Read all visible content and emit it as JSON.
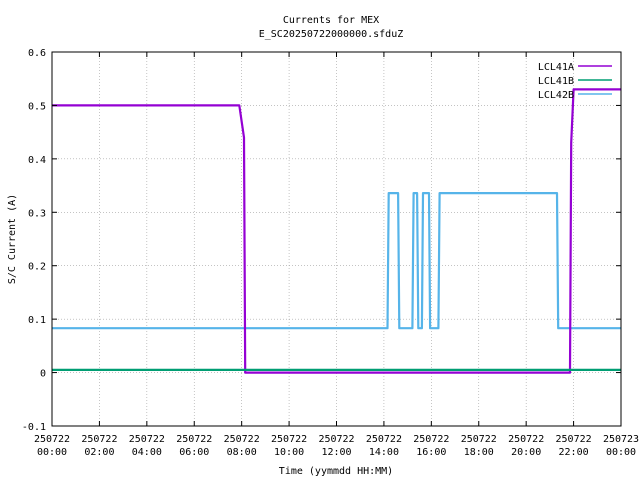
{
  "chart_data": {
    "type": "line",
    "title": "Currents for MEX",
    "subtitle": "E_SC20250722000000.sfduZ",
    "xlabel": "Time (yymmdd HH:MM)",
    "ylabel": "S/C Current (A)",
    "ylim": [
      -0.1,
      0.6
    ],
    "xlim_hours": [
      0,
      24
    ],
    "grid": true,
    "legend_position": "top-right",
    "y_ticks": [
      "-0.1",
      "0",
      "0.1",
      "0.2",
      "0.3",
      "0.4",
      "0.5",
      "0.6"
    ],
    "x_ticks": [
      {
        "date": "250722",
        "time": "00:00"
      },
      {
        "date": "250722",
        "time": "02:00"
      },
      {
        "date": "250722",
        "time": "04:00"
      },
      {
        "date": "250722",
        "time": "06:00"
      },
      {
        "date": "250722",
        "time": "08:00"
      },
      {
        "date": "250722",
        "time": "10:00"
      },
      {
        "date": "250722",
        "time": "12:00"
      },
      {
        "date": "250722",
        "time": "14:00"
      },
      {
        "date": "250722",
        "time": "16:00"
      },
      {
        "date": "250722",
        "time": "18:00"
      },
      {
        "date": "250722",
        "time": "20:00"
      },
      {
        "date": "250722",
        "time": "22:00"
      },
      {
        "date": "250723",
        "time": "00:00"
      }
    ],
    "series": [
      {
        "name": "LCL41A",
        "color": "#9400d3",
        "x": [
          0.0,
          7.9,
          8.1,
          8.15,
          21.85,
          21.9,
          22.0,
          24.0
        ],
        "y": [
          0.5,
          0.5,
          0.44,
          0.0,
          0.0,
          0.43,
          0.53,
          0.53
        ]
      },
      {
        "name": "LCL41B",
        "color": "#009e73",
        "x": [
          0.0,
          24.0
        ],
        "y": [
          0.005,
          0.005
        ]
      },
      {
        "name": "LCL42B",
        "color": "#56b4e9",
        "x": [
          0.0,
          14.15,
          14.2,
          14.6,
          14.65,
          15.2,
          15.25,
          15.4,
          15.45,
          15.6,
          15.65,
          15.9,
          15.95,
          16.3,
          16.35,
          21.3,
          21.35,
          21.6,
          21.65,
          24.0
        ],
        "y": [
          0.083,
          0.083,
          0.336,
          0.336,
          0.083,
          0.083,
          0.336,
          0.336,
          0.083,
          0.083,
          0.336,
          0.336,
          0.083,
          0.083,
          0.336,
          0.336,
          0.083,
          0.083,
          0.083,
          0.083
        ]
      }
    ]
  }
}
